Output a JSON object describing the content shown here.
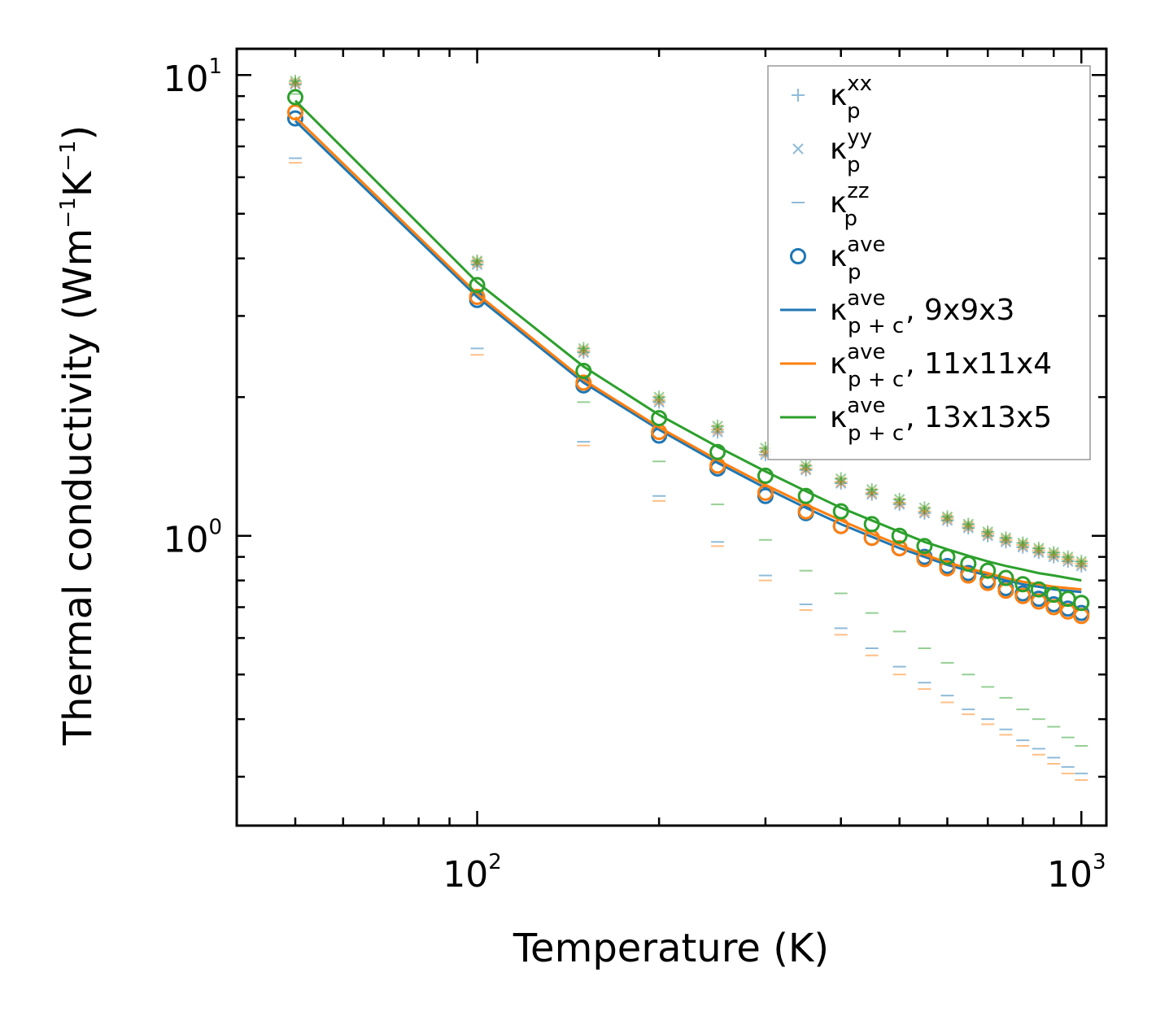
{
  "chart_data": {
    "type": "scatter",
    "title": "",
    "xlabel": "Temperature (K)",
    "ylabel": "Thermal conductivity (Wm",
    "ylabel_sup1": "−1",
    "ylabel_mid": "K",
    "ylabel_sup2": "−1",
    "ylabel_end": ")",
    "xscale": "log",
    "yscale": "log",
    "xlim": [
      40,
      1100
    ],
    "ylim": [
      0.235,
      11.4
    ],
    "x_ticks": [
      {
        "base": "10",
        "exp": "2",
        "value": 100
      },
      {
        "base": "10",
        "exp": "3",
        "value": 1000
      }
    ],
    "y_ticks": [
      {
        "base": "10",
        "exp": "0",
        "value": 1
      },
      {
        "base": "10",
        "exp": "1",
        "value": 10
      }
    ],
    "colors": {
      "blue": "#1f77b4",
      "orange": "#ff7f0e",
      "green": "#2ca02c"
    },
    "temperatures": [
      50,
      100,
      150,
      200,
      250,
      300,
      350,
      400,
      450,
      500,
      550,
      600,
      650,
      700,
      750,
      800,
      850,
      900,
      950,
      1000
    ],
    "series": [
      {
        "name": "9x9x3",
        "color": "#1f77b4",
        "kxx": [
          9.55,
          3.88,
          2.5,
          1.95,
          1.68,
          1.5,
          1.39,
          1.3,
          1.23,
          1.17,
          1.12,
          1.08,
          1.04,
          1.0,
          0.97,
          0.945,
          0.92,
          0.9,
          0.88,
          0.86
        ],
        "kzz": [
          6.6,
          2.55,
          1.6,
          1.22,
          0.97,
          0.82,
          0.71,
          0.63,
          0.57,
          0.52,
          0.48,
          0.45,
          0.42,
          0.4,
          0.38,
          0.36,
          0.345,
          0.33,
          0.315,
          0.305
        ],
        "kave": [
          8.05,
          3.25,
          2.12,
          1.65,
          1.4,
          1.22,
          1.12,
          1.05,
          0.99,
          0.94,
          0.9,
          0.86,
          0.83,
          0.8,
          0.77,
          0.75,
          0.73,
          0.71,
          0.695,
          0.68
        ],
        "line": [
          7.95,
          3.3,
          2.15,
          1.7,
          1.44,
          1.27,
          1.15,
          1.06,
          0.995,
          0.94,
          0.9,
          0.865,
          0.84,
          0.82,
          0.8,
          0.785,
          0.775,
          0.765,
          0.76,
          0.755
        ]
      },
      {
        "name": "11x11x4",
        "color": "#ff7f0e",
        "kxx": [
          9.6,
          3.92,
          2.52,
          1.97,
          1.7,
          1.52,
          1.4,
          1.31,
          1.24,
          1.18,
          1.13,
          1.09,
          1.05,
          1.01,
          0.98,
          0.955,
          0.93,
          0.91,
          0.89,
          0.87
        ],
        "kzz": [
          6.45,
          2.47,
          1.57,
          1.19,
          0.95,
          0.8,
          0.69,
          0.61,
          0.55,
          0.5,
          0.465,
          0.435,
          0.41,
          0.39,
          0.37,
          0.35,
          0.335,
          0.32,
          0.305,
          0.295
        ],
        "kave": [
          8.3,
          3.3,
          2.15,
          1.68,
          1.42,
          1.24,
          1.13,
          1.05,
          0.99,
          0.94,
          0.89,
          0.85,
          0.82,
          0.79,
          0.76,
          0.74,
          0.72,
          0.7,
          0.685,
          0.67
        ],
        "line": [
          8.1,
          3.35,
          2.18,
          1.72,
          1.46,
          1.29,
          1.17,
          1.08,
          1.01,
          0.955,
          0.91,
          0.875,
          0.85,
          0.83,
          0.81,
          0.795,
          0.785,
          0.775,
          0.77,
          0.765
        ]
      },
      {
        "name": "13x13x5",
        "color": "#2ca02c",
        "kxx": [
          9.7,
          3.95,
          2.55,
          2.0,
          1.73,
          1.55,
          1.42,
          1.33,
          1.26,
          1.2,
          1.15,
          1.1,
          1.06,
          1.02,
          0.99,
          0.965,
          0.94,
          0.92,
          0.9,
          0.88
        ],
        "kzz": [
          9.1,
          3.4,
          1.95,
          1.45,
          1.17,
          0.98,
          0.84,
          0.75,
          0.68,
          0.62,
          0.57,
          0.53,
          0.5,
          0.47,
          0.445,
          0.42,
          0.4,
          0.385,
          0.365,
          0.35
        ],
        "kave": [
          8.95,
          3.5,
          2.28,
          1.8,
          1.52,
          1.35,
          1.22,
          1.13,
          1.06,
          1.0,
          0.95,
          0.9,
          0.87,
          0.84,
          0.81,
          0.785,
          0.765,
          0.745,
          0.73,
          0.715
        ],
        "line": [
          8.8,
          3.55,
          2.33,
          1.83,
          1.56,
          1.38,
          1.25,
          1.15,
          1.08,
          1.02,
          0.97,
          0.935,
          0.905,
          0.88,
          0.86,
          0.845,
          0.83,
          0.82,
          0.81,
          0.8
        ]
      }
    ],
    "legend": {
      "position": "top-right",
      "entries": [
        {
          "marker": "plus",
          "color": "#1f77b4",
          "base": "κ",
          "sup": "xx",
          "sub": "p",
          "suffix": ""
        },
        {
          "marker": "cross",
          "color": "#1f77b4",
          "base": "κ",
          "sup": "yy",
          "sub": "p",
          "suffix": ""
        },
        {
          "marker": "dash",
          "color": "#1f77b4",
          "base": "κ",
          "sup": "zz",
          "sub": "p",
          "suffix": ""
        },
        {
          "marker": "circle",
          "color": "#1f77b4",
          "base": "κ",
          "sup": "ave",
          "sub": "p",
          "suffix": ""
        },
        {
          "marker": "line",
          "color": "#1f77b4",
          "base": "κ",
          "sup": "ave",
          "sub": "p + c",
          "suffix": ", 9x9x3"
        },
        {
          "marker": "line",
          "color": "#ff7f0e",
          "base": "κ",
          "sup": "ave",
          "sub": "p + c",
          "suffix": ", 11x11x4"
        },
        {
          "marker": "line",
          "color": "#2ca02c",
          "base": "κ",
          "sup": "ave",
          "sub": "p + c",
          "suffix": ", 13x13x5"
        }
      ]
    }
  }
}
